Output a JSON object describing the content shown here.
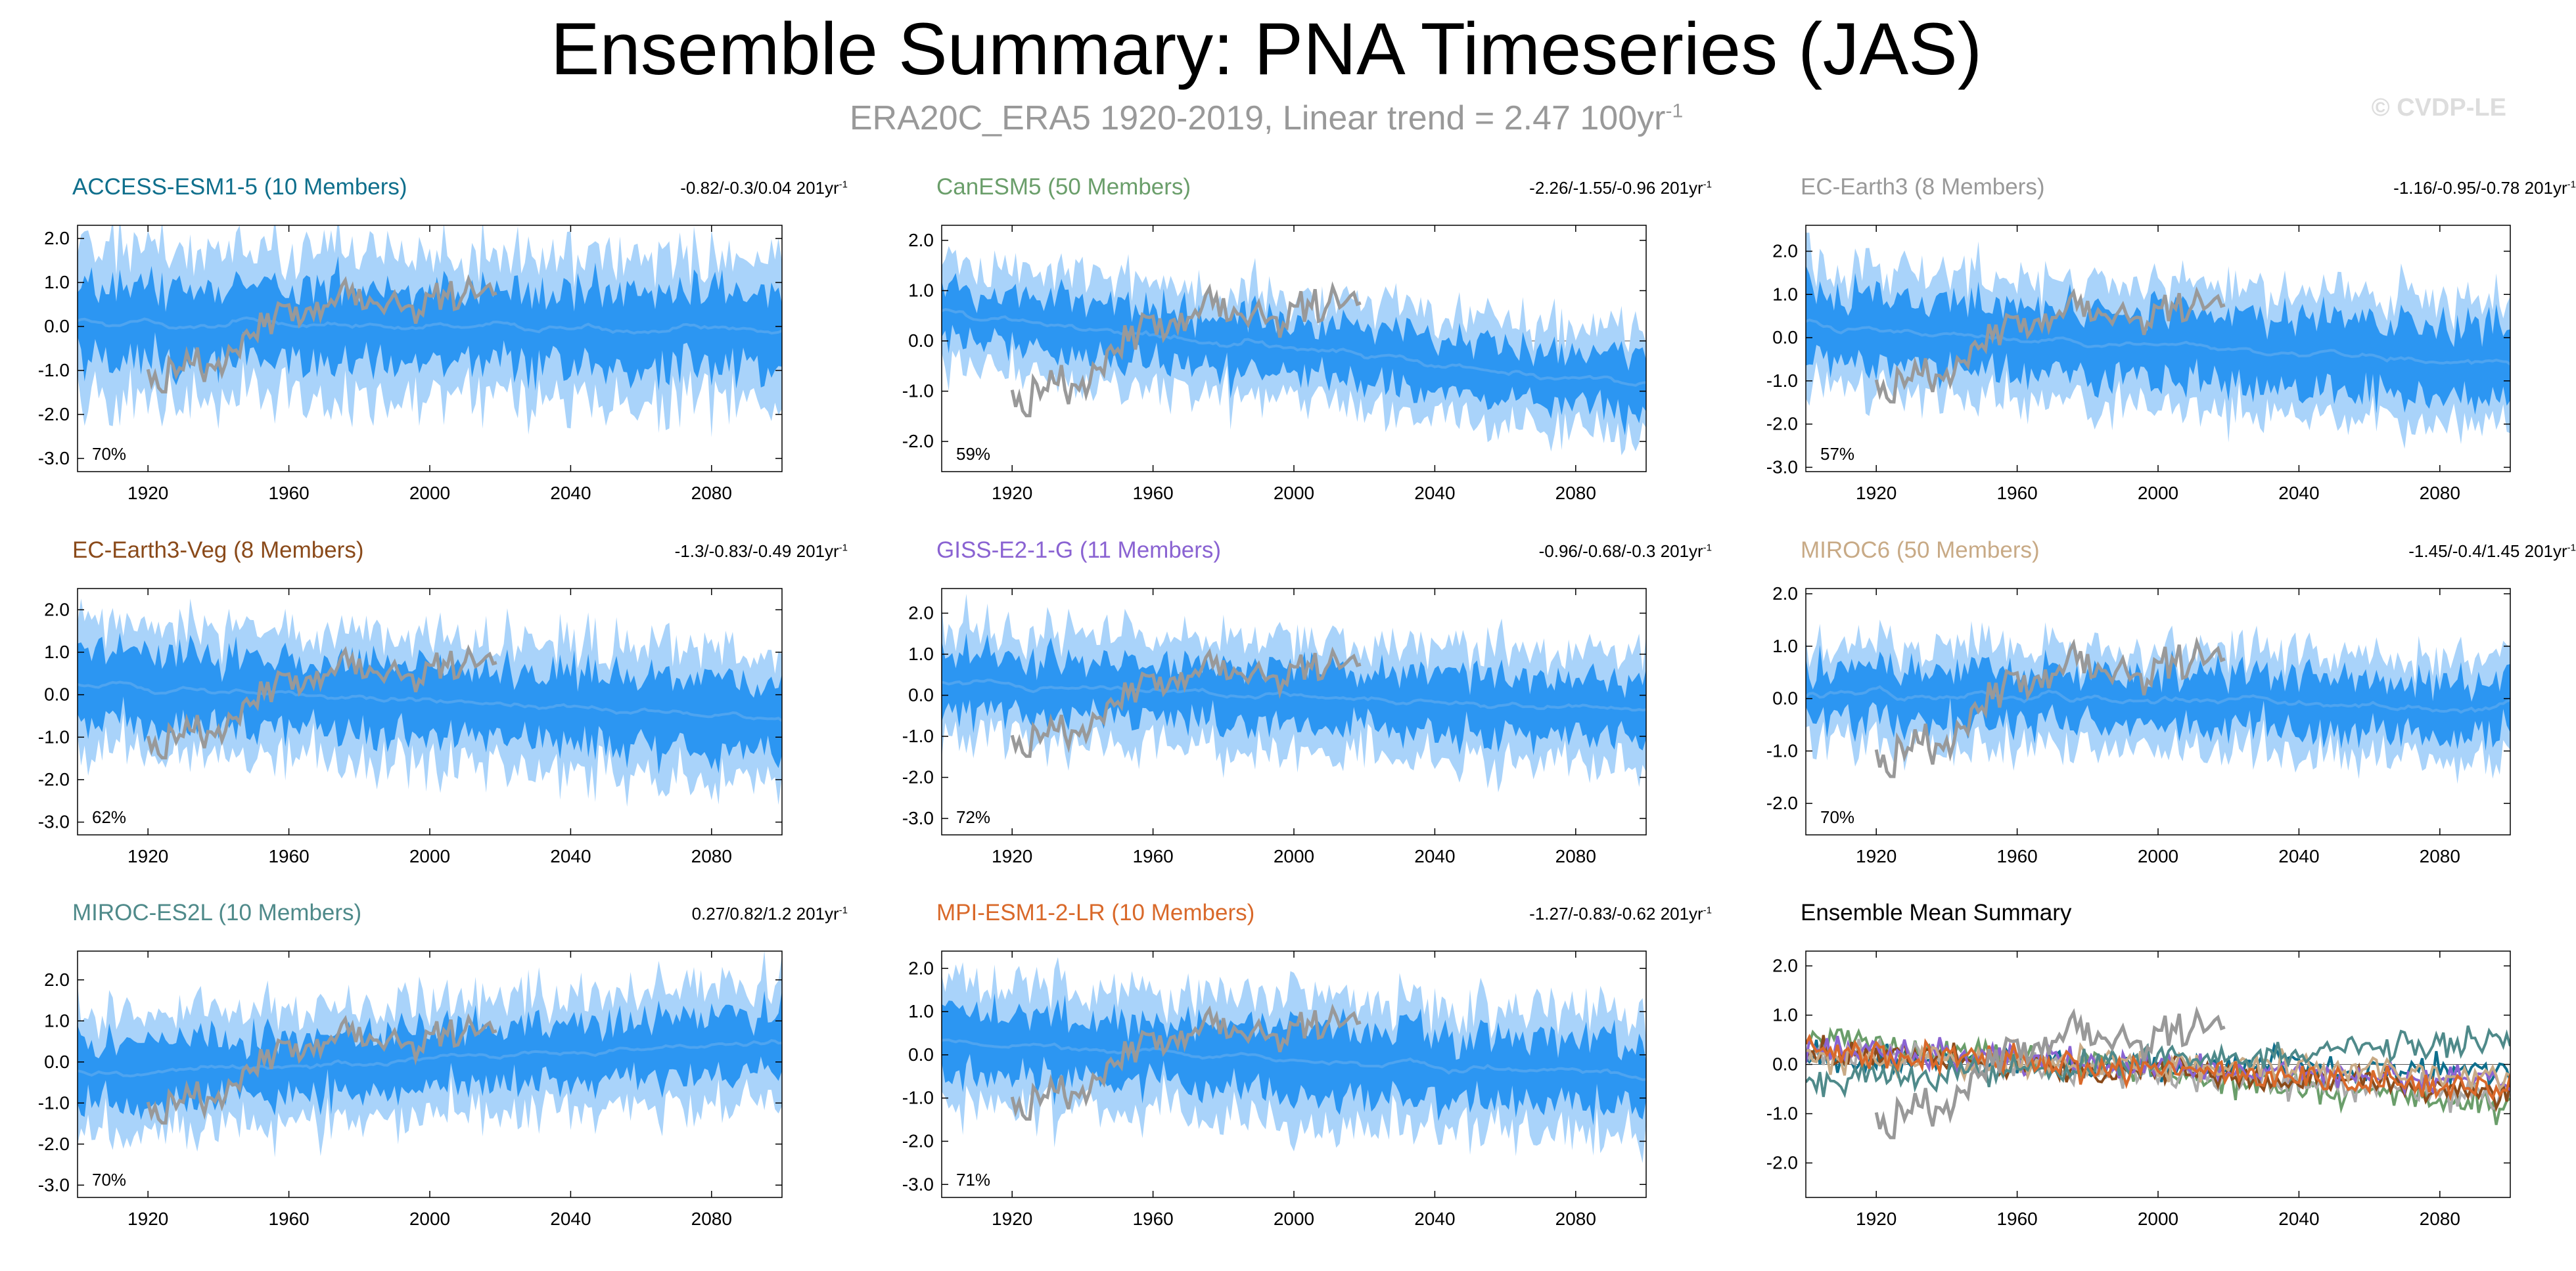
{
  "header": {
    "title": "Ensemble Summary: PNA Timeseries (JAS)",
    "subtitle_main": "ERA20C_ERA5 1920-2019, Linear trend = 2.47 100yr",
    "subtitle_exp": "-1",
    "copyright": "© CVDP-LE"
  },
  "colors": {
    "band_outer": "#a9d3fa",
    "band_inner": "#2c96f2",
    "mean_line": "#4ea4f0",
    "obs_line": "#999999"
  },
  "chart_data": [
    {
      "type": "area",
      "title": "ACCESS-ESM1-5 (10 Members)",
      "title_color": "#0f6f8c",
      "trend": "-0.82/-0.3/0.04 201yr",
      "trend_exp": "-1",
      "percent": "70%",
      "ylim": [
        -3.3,
        2.3
      ],
      "yticks": [
        "2.0",
        "1.0",
        "0.0",
        "-1.0",
        "-2.0",
        "-3.0"
      ],
      "xticks": [
        "1920",
        "1960",
        "2000",
        "2040",
        "2080"
      ],
      "xlim": [
        1900,
        2100
      ],
      "mean_slope": -0.2,
      "mean_intercept": 0.1,
      "inner_w": 0.85,
      "outer_w": 1.8
    },
    {
      "type": "area",
      "title": "CanESM5 (50 Members)",
      "title_color": "#6a9e6a",
      "trend": "-2.26/-1.55/-0.96 201yr",
      "trend_exp": "-1",
      "percent": "59%",
      "ylim": [
        -2.6,
        2.3
      ],
      "yticks": [
        "2.0",
        "1.0",
        "0.0",
        "-1.0",
        "-2.0"
      ],
      "xticks": [
        "1920",
        "1960",
        "2000",
        "2040",
        "2080"
      ],
      "xlim": [
        1900,
        2100
      ],
      "mean_slope": -1.4,
      "mean_intercept": 0.55,
      "inner_w": 0.55,
      "outer_w": 1.1
    },
    {
      "type": "area",
      "title": "EC-Earth3 (8 Members)",
      "title_color": "#999999",
      "trend": "-1.16/-0.95/-0.78 201yr",
      "trend_exp": "-1",
      "percent": "57%",
      "ylim": [
        -3.1,
        2.6
      ],
      "yticks": [
        "2.0",
        "1.0",
        "0.0",
        "-1.0",
        "-2.0",
        "-3.0"
      ],
      "xticks": [
        "1920",
        "1960",
        "2000",
        "2040",
        "2080"
      ],
      "xlim": [
        1900,
        2100
      ],
      "mean_slope": -0.95,
      "mean_intercept": 0.3,
      "inner_w": 0.8,
      "outer_w": 1.4
    },
    {
      "type": "area",
      "title": "EC-Earth3-Veg (8 Members)",
      "title_color": "#8a4a1a",
      "trend": "-1.3/-0.83/-0.49 201yr",
      "trend_exp": "-1",
      "percent": "62%",
      "ylim": [
        -3.3,
        2.5
      ],
      "yticks": [
        "2.0",
        "1.0",
        "0.0",
        "-1.0",
        "-2.0",
        "-3.0"
      ],
      "xticks": [
        "1920",
        "1960",
        "2000",
        "2040",
        "2080"
      ],
      "xlim": [
        1900,
        2100
      ],
      "mean_slope": -0.8,
      "mean_intercept": 0.25,
      "inner_w": 0.85,
      "outer_w": 1.5
    },
    {
      "type": "area",
      "title": "GISS-E2-1-G (11 Members)",
      "title_color": "#8a63d2",
      "trend": "-0.96/-0.68/-0.3 201yr",
      "trend_exp": "-1",
      "percent": "72%",
      "ylim": [
        -3.4,
        2.6
      ],
      "yticks": [
        "2.0",
        "1.0",
        "0.0",
        "-1.0",
        "-2.0",
        "-3.0"
      ],
      "xticks": [
        "1920",
        "1960",
        "2000",
        "2040",
        "2080"
      ],
      "xlim": [
        1900,
        2100
      ],
      "mean_slope": -0.65,
      "mean_intercept": 0.3,
      "inner_w": 0.7,
      "outer_w": 1.45
    },
    {
      "type": "area",
      "title": "MIROC6 (50 Members)",
      "title_color": "#c8aa86",
      "trend": "-1.45/-0.4/1.45 201yr",
      "trend_exp": "-1",
      "percent": "70%",
      "ylim": [
        -2.6,
        2.1
      ],
      "yticks": [
        "2.0",
        "1.0",
        "0.0",
        "-1.0",
        "-2.0"
      ],
      "xticks": [
        "1920",
        "1960",
        "2000",
        "2040",
        "2080"
      ],
      "xlim": [
        1900,
        2100
      ],
      "mean_slope": -0.35,
      "mean_intercept": 0.15,
      "inner_w": 0.5,
      "outer_w": 1.0
    },
    {
      "type": "area",
      "title": "MIROC-ES2L (10 Members)",
      "title_color": "#4f8a8a",
      "trend": "0.27/0.82/1.2 201yr",
      "trend_exp": "-1",
      "percent": "70%",
      "ylim": [
        -3.3,
        2.7
      ],
      "yticks": [
        "2.0",
        "1.0",
        "0.0",
        "-1.0",
        "-2.0",
        "-3.0"
      ],
      "xticks": [
        "1920",
        "1960",
        "2000",
        "2040",
        "2080"
      ],
      "xlim": [
        1900,
        2100
      ],
      "mean_slope": 0.85,
      "mean_intercept": -0.35,
      "inner_w": 0.7,
      "outer_w": 1.5
    },
    {
      "type": "area",
      "title": "MPI-ESM1-2-LR (10 Members)",
      "title_color": "#d9692a",
      "trend": "-1.27/-0.83/-0.62 201yr",
      "trend_exp": "-1",
      "percent": "71%",
      "ylim": [
        -3.3,
        2.4
      ],
      "yticks": [
        "2.0",
        "1.0",
        "0.0",
        "-1.0",
        "-2.0",
        "-3.0"
      ],
      "xticks": [
        "1920",
        "1960",
        "2000",
        "2040",
        "2080"
      ],
      "xlim": [
        1900,
        2100
      ],
      "mean_slope": -0.8,
      "mean_intercept": 0.3,
      "inner_w": 0.75,
      "outer_w": 1.5
    },
    {
      "type": "line",
      "title": "Ensemble Mean Summary",
      "title_color": "#000000",
      "trend": "",
      "trend_exp": "",
      "percent": "",
      "ylim": [
        -2.7,
        2.3
      ],
      "yticks": [
        "2.0",
        "1.0",
        "0.0",
        "-1.0",
        "-2.0"
      ],
      "xticks": [
        "1920",
        "1960",
        "2000",
        "2040",
        "2080"
      ],
      "xlim": [
        1900,
        2100
      ],
      "series": [
        {
          "name": "ACCESS-ESM1-5",
          "color": "#0f6f8c",
          "slope": -0.2,
          "intercept": 0.1
        },
        {
          "name": "CanESM5",
          "color": "#6a9e6a",
          "slope": -1.4,
          "intercept": 0.55
        },
        {
          "name": "EC-Earth3",
          "color": "#aaaaaa",
          "slope": -0.95,
          "intercept": 0.3
        },
        {
          "name": "EC-Earth3-Veg",
          "color": "#8a4a1a",
          "slope": -0.8,
          "intercept": 0.25
        },
        {
          "name": "GISS-E2-1-G",
          "color": "#8a63d2",
          "slope": -0.65,
          "intercept": 0.3
        },
        {
          "name": "MIROC6",
          "color": "#c8aa86",
          "slope": -0.35,
          "intercept": 0.15
        },
        {
          "name": "MIROC-ES2L",
          "color": "#4f8a8a",
          "slope": 0.85,
          "intercept": -0.35
        },
        {
          "name": "MPI-ESM1-2-LR",
          "color": "#d9692a",
          "slope": -0.8,
          "intercept": 0.3
        }
      ]
    }
  ]
}
